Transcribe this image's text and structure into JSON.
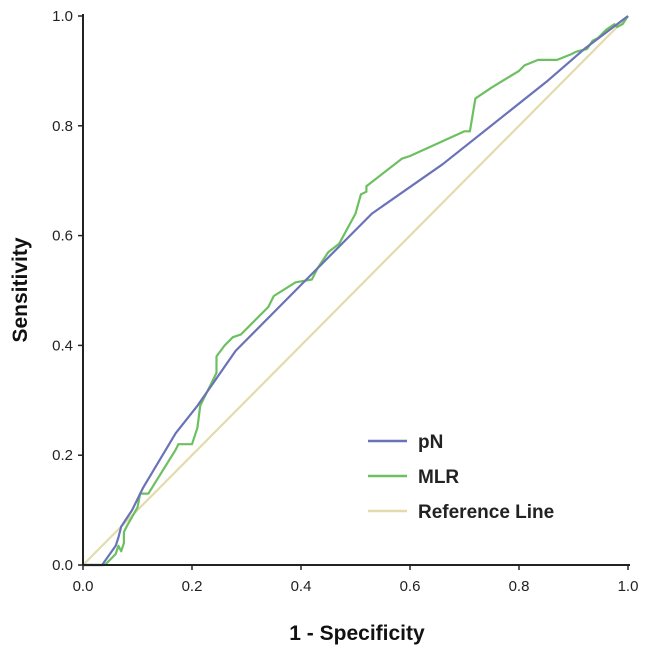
{
  "chart_data": {
    "type": "line",
    "title": "",
    "xlabel": "1 - Specificity",
    "ylabel": "Sensitivity",
    "xlim": [
      0,
      1
    ],
    "ylim": [
      0,
      1
    ],
    "x_ticks": [
      "0.0",
      "0.2",
      "0.4",
      "0.6",
      "0.8",
      "1.0"
    ],
    "y_ticks": [
      "0.0",
      "0.2",
      "0.4",
      "0.6",
      "0.8",
      "1.0"
    ],
    "grid": false,
    "legend_position": "bottom-right",
    "series": [
      {
        "name": "pN",
        "color": "#6a72b8",
        "points": [
          [
            0,
            0
          ],
          [
            0.035,
            0
          ],
          [
            0.06,
            0.035
          ],
          [
            0.065,
            0.05
          ],
          [
            0.07,
            0.07
          ],
          [
            0.09,
            0.1
          ],
          [
            0.11,
            0.14
          ],
          [
            0.17,
            0.24
          ],
          [
            0.21,
            0.29
          ],
          [
            0.28,
            0.39
          ],
          [
            0.41,
            0.52
          ],
          [
            0.53,
            0.64
          ],
          [
            0.66,
            0.73
          ],
          [
            0.85,
            0.88
          ],
          [
            0.92,
            0.94
          ],
          [
            1,
            1
          ]
        ]
      },
      {
        "name": "MLR",
        "color": "#6cc060",
        "points": [
          [
            0,
            0
          ],
          [
            0.04,
            0
          ],
          [
            0.05,
            0.01
          ],
          [
            0.06,
            0.02
          ],
          [
            0.065,
            0.035
          ],
          [
            0.07,
            0.025
          ],
          [
            0.075,
            0.04
          ],
          [
            0.075,
            0.06
          ],
          [
            0.08,
            0.07
          ],
          [
            0.1,
            0.105
          ],
          [
            0.105,
            0.13
          ],
          [
            0.12,
            0.13
          ],
          [
            0.145,
            0.17
          ],
          [
            0.17,
            0.21
          ],
          [
            0.175,
            0.22
          ],
          [
            0.2,
            0.22
          ],
          [
            0.21,
            0.25
          ],
          [
            0.215,
            0.29
          ],
          [
            0.245,
            0.35
          ],
          [
            0.245,
            0.38
          ],
          [
            0.26,
            0.4
          ],
          [
            0.275,
            0.415
          ],
          [
            0.29,
            0.42
          ],
          [
            0.34,
            0.47
          ],
          [
            0.35,
            0.49
          ],
          [
            0.39,
            0.515
          ],
          [
            0.42,
            0.52
          ],
          [
            0.43,
            0.54
          ],
          [
            0.45,
            0.57
          ],
          [
            0.47,
            0.585
          ],
          [
            0.5,
            0.64
          ],
          [
            0.51,
            0.675
          ],
          [
            0.52,
            0.68
          ],
          [
            0.52,
            0.69
          ],
          [
            0.585,
            0.74
          ],
          [
            0.6,
            0.745
          ],
          [
            0.7,
            0.79
          ],
          [
            0.71,
            0.79
          ],
          [
            0.72,
            0.85
          ],
          [
            0.75,
            0.87
          ],
          [
            0.8,
            0.9
          ],
          [
            0.81,
            0.91
          ],
          [
            0.835,
            0.92
          ],
          [
            0.87,
            0.92
          ],
          [
            0.895,
            0.93
          ],
          [
            0.905,
            0.935
          ],
          [
            0.925,
            0.94
          ],
          [
            0.935,
            0.955
          ],
          [
            0.945,
            0.96
          ],
          [
            0.96,
            0.975
          ],
          [
            0.975,
            0.985
          ],
          [
            0.98,
            0.98
          ],
          [
            0.99,
            0.985
          ],
          [
            1,
            1
          ]
        ]
      },
      {
        "name": "Reference Line",
        "color": "#e2dcac",
        "points": [
          [
            0,
            0
          ],
          [
            1,
            1
          ]
        ]
      }
    ]
  }
}
